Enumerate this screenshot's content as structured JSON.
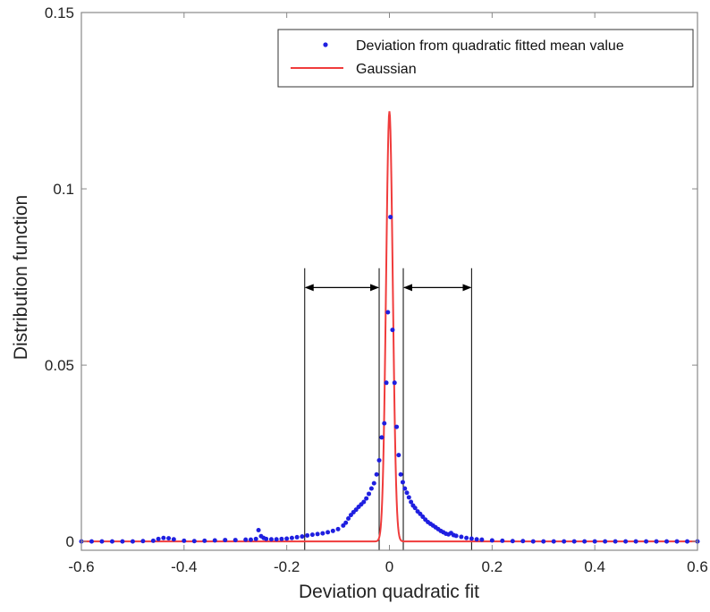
{
  "chart_data": {
    "type": "scatter",
    "xlabel": "Deviation quadratic fit",
    "ylabel": "Distribution function",
    "xlim": [
      -0.6,
      0.6
    ],
    "ylim": [
      0,
      0.15
    ],
    "y_baseline": -0.0025,
    "x_ticks": [
      -0.6,
      -0.4,
      -0.2,
      0,
      0.2,
      0.4,
      0.6
    ],
    "x_tick_labels": [
      "-0.6",
      "-0.4",
      "-0.2",
      "0",
      "0.2",
      "0.4",
      "0.6"
    ],
    "y_ticks": [
      0,
      0.05,
      0.1,
      0.15
    ],
    "y_tick_labels": [
      "0",
      "0.05",
      "0.1",
      "0.15"
    ],
    "grid": false,
    "legend_position": "top-right",
    "colors": {
      "points": "#1f1fe0",
      "gaussian": "#f03c3c",
      "annotation": "#000000",
      "axes": "#888888"
    },
    "series": [
      {
        "name": "Deviation from quadratic fitted mean value",
        "kind": "scatter",
        "points": [
          [
            -0.6,
            0.0
          ],
          [
            -0.58,
            0.0
          ],
          [
            -0.56,
            0.0
          ],
          [
            -0.54,
            0.0
          ],
          [
            -0.52,
            0.0
          ],
          [
            -0.5,
            0.0
          ],
          [
            -0.48,
            0.0001
          ],
          [
            -0.46,
            0.0002
          ],
          [
            -0.45,
            0.0007
          ],
          [
            -0.44,
            0.001
          ],
          [
            -0.43,
            0.0009
          ],
          [
            -0.42,
            0.0006
          ],
          [
            -0.4,
            0.0002
          ],
          [
            -0.38,
            0.0001
          ],
          [
            -0.36,
            0.0002
          ],
          [
            -0.34,
            0.0003
          ],
          [
            -0.32,
            0.0004
          ],
          [
            -0.3,
            0.0004
          ],
          [
            -0.28,
            0.0005
          ],
          [
            -0.27,
            0.0005
          ],
          [
            -0.26,
            0.0007
          ],
          [
            -0.255,
            0.0032
          ],
          [
            -0.25,
            0.0015
          ],
          [
            -0.245,
            0.001
          ],
          [
            -0.24,
            0.0007
          ],
          [
            -0.23,
            0.0006
          ],
          [
            -0.22,
            0.0006
          ],
          [
            -0.21,
            0.0007
          ],
          [
            -0.2,
            0.0008
          ],
          [
            -0.19,
            0.001
          ],
          [
            -0.18,
            0.0012
          ],
          [
            -0.17,
            0.0014
          ],
          [
            -0.16,
            0.0017
          ],
          [
            -0.15,
            0.0019
          ],
          [
            -0.14,
            0.0021
          ],
          [
            -0.13,
            0.0023
          ],
          [
            -0.12,
            0.0026
          ],
          [
            -0.11,
            0.003
          ],
          [
            -0.1,
            0.0035
          ],
          [
            -0.09,
            0.0045
          ],
          [
            -0.085,
            0.0053
          ],
          [
            -0.08,
            0.0065
          ],
          [
            -0.075,
            0.0075
          ],
          [
            -0.07,
            0.0083
          ],
          [
            -0.065,
            0.009
          ],
          [
            -0.06,
            0.0098
          ],
          [
            -0.055,
            0.0105
          ],
          [
            -0.05,
            0.0112
          ],
          [
            -0.045,
            0.0122
          ],
          [
            -0.04,
            0.0135
          ],
          [
            -0.035,
            0.015
          ],
          [
            -0.03,
            0.0165
          ],
          [
            -0.025,
            0.019
          ],
          [
            -0.02,
            0.023
          ],
          [
            -0.015,
            0.0295
          ],
          [
            -0.01,
            0.0335
          ],
          [
            -0.006,
            0.045
          ],
          [
            -0.003,
            0.065
          ],
          [
            0.002,
            0.092
          ],
          [
            0.006,
            0.06
          ],
          [
            0.01,
            0.045
          ],
          [
            0.014,
            0.0325
          ],
          [
            0.018,
            0.0245
          ],
          [
            0.022,
            0.019
          ],
          [
            0.026,
            0.0168
          ],
          [
            0.03,
            0.015
          ],
          [
            0.034,
            0.0138
          ],
          [
            0.038,
            0.0125
          ],
          [
            0.042,
            0.0112
          ],
          [
            0.046,
            0.0102
          ],
          [
            0.05,
            0.0095
          ],
          [
            0.055,
            0.0085
          ],
          [
            0.06,
            0.0078
          ],
          [
            0.065,
            0.007
          ],
          [
            0.07,
            0.0062
          ],
          [
            0.075,
            0.0055
          ],
          [
            0.08,
            0.005
          ],
          [
            0.085,
            0.0045
          ],
          [
            0.09,
            0.004
          ],
          [
            0.095,
            0.0035
          ],
          [
            0.1,
            0.003
          ],
          [
            0.105,
            0.0026
          ],
          [
            0.11,
            0.0022
          ],
          [
            0.115,
            0.002
          ],
          [
            0.12,
            0.0024
          ],
          [
            0.125,
            0.0018
          ],
          [
            0.13,
            0.0016
          ],
          [
            0.14,
            0.0013
          ],
          [
            0.15,
            0.001
          ],
          [
            0.16,
            0.0008
          ],
          [
            0.17,
            0.0006
          ],
          [
            0.18,
            0.0005
          ],
          [
            0.2,
            0.0003
          ],
          [
            0.22,
            0.0002
          ],
          [
            0.24,
            0.0001
          ],
          [
            0.26,
            0.0001
          ],
          [
            0.28,
            0.0
          ],
          [
            0.3,
            0.0
          ],
          [
            0.32,
            0.0
          ],
          [
            0.34,
            0.0
          ],
          [
            0.36,
            0.0
          ],
          [
            0.38,
            0.0
          ],
          [
            0.4,
            0.0
          ],
          [
            0.42,
            0.0
          ],
          [
            0.44,
            0.0
          ],
          [
            0.46,
            0.0
          ],
          [
            0.48,
            0.0
          ],
          [
            0.5,
            0.0
          ],
          [
            0.52,
            0.0
          ],
          [
            0.54,
            0.0
          ],
          [
            0.56,
            0.0
          ],
          [
            0.58,
            0.0
          ],
          [
            0.6,
            0.0
          ]
        ]
      },
      {
        "name": "Gaussian",
        "kind": "line",
        "peak": 0.122,
        "mean": 0.0,
        "sigma": 0.0065
      }
    ],
    "annotations": {
      "vertical_lines_x": [
        -0.165,
        -0.02,
        0.027,
        0.16
      ],
      "vertical_lines_y_top": 0.0775,
      "arrows": [
        {
          "x1": -0.165,
          "x2": -0.02,
          "y": 0.072
        },
        {
          "x1": 0.027,
          "x2": 0.16,
          "y": 0.072
        }
      ]
    }
  }
}
